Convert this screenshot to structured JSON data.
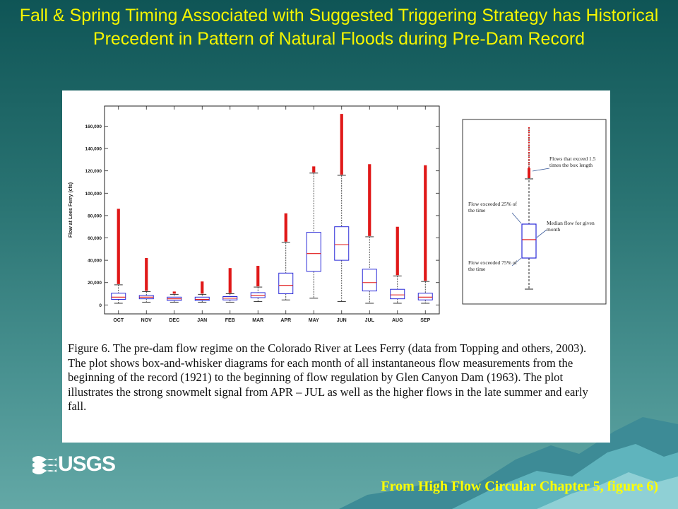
{
  "slide": {
    "title": "Fall & Spring Timing Associated with Suggested Triggering Strategy has Historical Precedent in Pattern of Natural Floods during Pre-Dam Record",
    "source_note": "From High Flow Circular Chapter 5, figure 6)",
    "logo_text": "USGS"
  },
  "figure": {
    "caption": "Figure 6.  The pre-dam flow regime on the Colorado River at Lees Ferry (data from Topping and others, 2003). The plot shows box-and-whisker diagrams for each month of all instantaneous flow measurements from the beginning of the record (1921) to the beginning of flow regulation by Glen Canyon Dam (1963). The plot illustrates the strong snowmelt signal from APR – JUL as well as the higher flows in the late summer and early fall.",
    "inset": {
      "outliers_note": "Flows that exceed 1.5 times the box length",
      "q25_note": "Flow exceeded 25% of the time",
      "median_note": "Median flow for given month",
      "q75_note": "Flow exceeded 75% of the time"
    }
  },
  "colors": {
    "title": "#f5f500",
    "box": "#2a2ad8",
    "median": "#e01818",
    "outlier": "#e01818",
    "source_note": "#ffff00"
  },
  "chart_data": {
    "type": "box",
    "ylabel": "Flow at Lees Ferry (cfs)",
    "xlabel": "",
    "ylim": [
      -8000,
      178000
    ],
    "yticks": [
      0,
      20000,
      40000,
      60000,
      80000,
      100000,
      120000,
      140000,
      160000
    ],
    "ytick_labels": [
      "0",
      "20,000",
      "40,000",
      "60,000",
      "80,000",
      "100,000",
      "120,000",
      "140,000",
      "160,000"
    ],
    "grid": false,
    "categories": [
      "OCT",
      "NOV",
      "DEC",
      "JAN",
      "FEB",
      "MAR",
      "APR",
      "MAY",
      "JUN",
      "JUL",
      "AUG",
      "SEP"
    ],
    "boxes": [
      {
        "min": 1500,
        "q1": 5000,
        "median": 7000,
        "q3": 10500,
        "max": 18000,
        "outlier_max": 86000
      },
      {
        "min": 2500,
        "q1": 5500,
        "median": 7000,
        "q3": 8500,
        "max": 12000,
        "outlier_max": 42000
      },
      {
        "min": 2500,
        "q1": 4000,
        "median": 5500,
        "q3": 7000,
        "max": 9500,
        "outlier_max": 12000
      },
      {
        "min": 2500,
        "q1": 4000,
        "median": 5000,
        "q3": 7000,
        "max": 9500,
        "outlier_max": 21000
      },
      {
        "min": 2500,
        "q1": 4500,
        "median": 6000,
        "q3": 7500,
        "max": 10000,
        "outlier_max": 33000
      },
      {
        "min": 3000,
        "q1": 6500,
        "median": 8500,
        "q3": 11000,
        "max": 16000,
        "outlier_max": 35000
      },
      {
        "min": 4500,
        "q1": 10000,
        "median": 17500,
        "q3": 28500,
        "max": 56000,
        "outlier_max": 82000
      },
      {
        "min": 6000,
        "q1": 30000,
        "median": 46000,
        "q3": 65000,
        "max": 118000,
        "outlier_max": 124000
      },
      {
        "min": 3000,
        "q1": 40000,
        "median": 54000,
        "q3": 70000,
        "max": 116000,
        "outlier_max": 171000
      },
      {
        "min": 1500,
        "q1": 12500,
        "median": 20000,
        "q3": 32000,
        "max": 61000,
        "outlier_max": 126000
      },
      {
        "min": 1500,
        "q1": 5500,
        "median": 9000,
        "q3": 14000,
        "max": 26000,
        "outlier_max": 70000
      },
      {
        "min": 1500,
        "q1": 4500,
        "median": 7000,
        "q3": 10500,
        "max": 21000,
        "outlier_max": 125000
      }
    ]
  }
}
